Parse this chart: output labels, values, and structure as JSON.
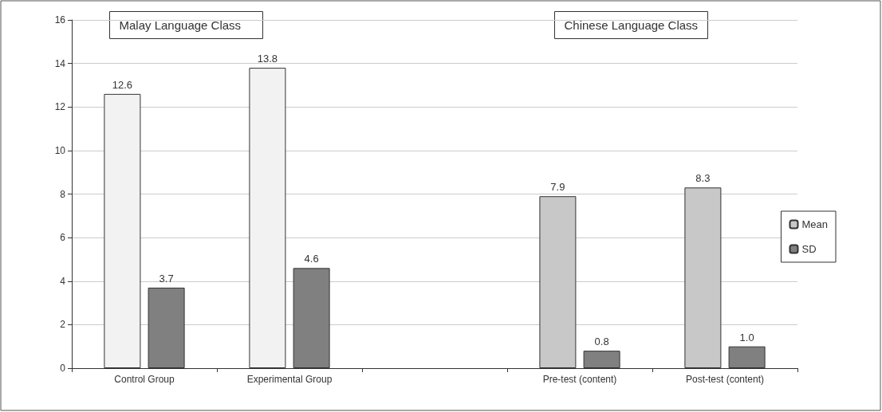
{
  "chart_data": {
    "type": "bar",
    "categories": [
      "Control Group",
      "Experimental Group",
      null,
      "Pre-test (content)",
      "Post-test (content)"
    ],
    "series": [
      {
        "name": "Mean",
        "color": "#c8c8c8",
        "colors": [
          "#f2f2f2",
          "#f2f2f2",
          null,
          "#c8c8c8",
          "#c8c8c8"
        ],
        "values": [
          12.6,
          13.8,
          null,
          7.9,
          8.3
        ],
        "value_labels": [
          "12.6",
          "13.8",
          null,
          "7.9",
          "8.3"
        ]
      },
      {
        "name": "SD",
        "color": "#808080",
        "values": [
          3.7,
          4.6,
          null,
          0.8,
          1.0
        ],
        "value_labels": [
          "3.7",
          "4.6",
          null,
          "0.8",
          "1.0"
        ]
      }
    ],
    "ylim": [
      0,
      16
    ],
    "yticks": [
      0,
      2,
      4,
      6,
      8,
      10,
      12,
      14,
      16
    ],
    "grid": "y",
    "legend": "right",
    "annotations": [
      "Malay Language Class",
      "Chinese Language Class"
    ]
  }
}
